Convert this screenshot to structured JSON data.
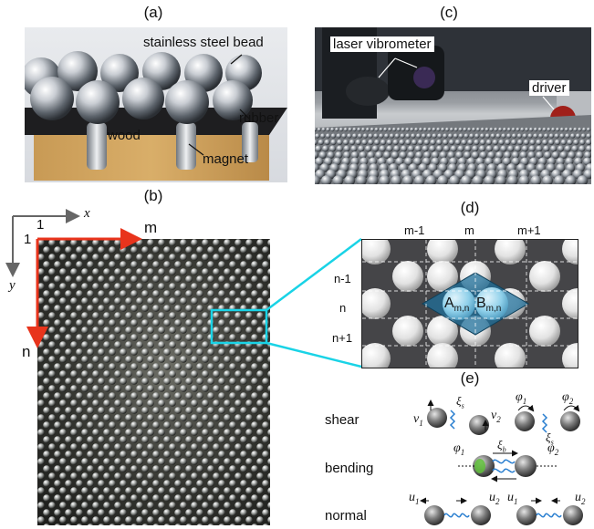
{
  "panels": {
    "a": {
      "label": "(a)",
      "annotations": {
        "bead": "stainless steel bead",
        "rubber": "rubber",
        "wood": "wood",
        "magnet": "magnet"
      }
    },
    "b": {
      "label": "(b)",
      "axis_x": "x",
      "axis_y": "y",
      "origin_col": "1",
      "origin_row": "1",
      "col_index": "m",
      "row_index": "n"
    },
    "c": {
      "label": "(c)",
      "annotations": {
        "vibrometer": "laser vibrometer",
        "driver": "driver"
      }
    },
    "d": {
      "label": "(d)",
      "columns": [
        "m-1",
        "m",
        "m+1"
      ],
      "rows": [
        "n-1",
        "n",
        "n+1"
      ],
      "site_a": "A",
      "site_b": "B",
      "site_sub": "m,n"
    },
    "e": {
      "label": "(e)",
      "modes": [
        "shear",
        "bending",
        "normal"
      ],
      "symbols": {
        "v1": "v",
        "v2": "v",
        "phi1": "φ",
        "phi2": "φ",
        "u1": "u",
        "u2": "u",
        "xi_s": "ξ",
        "xi_b": "ξ",
        "xi_n": "ξ",
        "sub1": "1",
        "sub2": "2",
        "sub_s": "s",
        "sub_b": "b",
        "sub_n": "n"
      }
    }
  },
  "colors": {
    "axis_red": "#e8341c",
    "highlight_cyan": "#19d3e6",
    "spring_blue": "#2a7fd0",
    "bead_blue": "#7fc8e8"
  }
}
